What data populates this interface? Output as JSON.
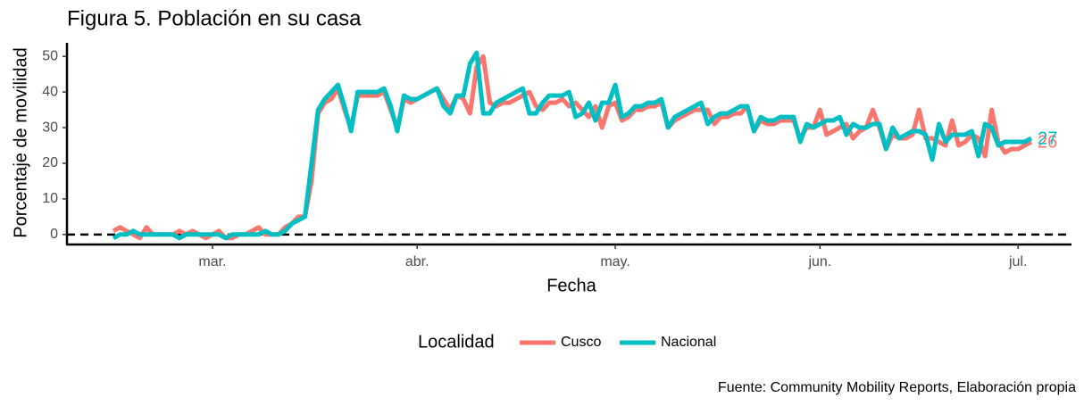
{
  "chart_data": {
    "type": "line",
    "title": "Figura 5. Población en su casa",
    "x_label": "Fecha",
    "y_label": "Porcentaje de movilidad",
    "legend_title": "Localidad",
    "caption": "Fuente: Community Mobility Reports, Elaboración propia",
    "categories": [
      null,
      null,
      null,
      null,
      null,
      null,
      null,
      null,
      null,
      null,
      null,
      null,
      null,
      null,
      null,
      "mar.",
      null,
      null,
      null,
      null,
      null,
      null,
      null,
      null,
      null,
      null,
      null,
      null,
      null,
      null,
      null,
      null,
      null,
      null,
      null,
      null,
      null,
      null,
      null,
      null,
      null,
      null,
      null,
      null,
      null,
      null,
      "abr.",
      null,
      null,
      null,
      null,
      null,
      null,
      null,
      null,
      null,
      null,
      null,
      null,
      null,
      null,
      null,
      null,
      null,
      null,
      null,
      null,
      null,
      null,
      null,
      null,
      null,
      null,
      null,
      null,
      null,
      "may.",
      null,
      null,
      null,
      null,
      null,
      null,
      null,
      null,
      null,
      null,
      null,
      null,
      null,
      null,
      null,
      null,
      null,
      null,
      null,
      null,
      null,
      null,
      null,
      null,
      null,
      null,
      null,
      null,
      null,
      null,
      "jun.",
      null,
      null,
      null,
      null,
      null,
      null,
      null,
      null,
      null,
      null,
      null,
      null,
      null,
      null,
      null,
      null,
      null,
      null,
      null,
      null,
      null,
      null,
      null,
      null,
      null,
      null,
      null,
      null,
      null,
      "jul.",
      null,
      null
    ],
    "series": [
      {
        "name": "Cusco",
        "color": "#F8766D",
        "values": [
          1,
          2,
          1,
          0,
          -1,
          2,
          0,
          0,
          0,
          0,
          1,
          0,
          1,
          0,
          -1,
          0,
          1,
          -1,
          -1,
          0,
          0,
          1,
          2,
          0,
          0,
          0,
          2,
          3,
          5,
          5,
          15,
          34,
          37,
          38,
          41,
          35,
          30,
          39,
          39,
          39,
          39,
          40,
          35,
          30,
          38,
          37,
          38,
          39,
          40,
          41,
          38,
          35,
          39,
          38,
          34,
          47,
          50,
          37,
          36,
          37,
          37,
          38,
          39,
          40,
          36,
          35,
          37,
          37,
          38,
          36,
          37,
          35,
          33,
          36,
          30,
          36,
          37,
          32,
          33,
          35,
          35,
          36,
          36,
          37,
          30,
          32,
          33,
          34,
          35,
          35,
          35,
          31,
          33,
          33,
          34,
          34,
          36,
          29,
          32,
          31,
          31,
          32,
          32,
          32,
          27,
          30,
          30,
          35,
          28,
          29,
          30,
          31,
          27,
          29,
          30,
          35,
          30,
          24,
          28,
          27,
          27,
          28,
          35,
          27,
          27,
          26,
          25,
          32,
          25,
          26,
          28,
          27,
          22,
          35,
          26,
          23,
          24,
          24,
          25,
          26
        ]
      },
      {
        "name": "Nacional",
        "color": "#00BFC4",
        "values": [
          -1,
          0,
          0,
          1,
          0,
          0,
          0,
          0,
          0,
          0,
          -1,
          0,
          0,
          0,
          0,
          0,
          0,
          -1,
          0,
          0,
          0,
          0,
          0,
          1,
          0,
          0,
          1,
          3,
          4,
          5,
          20,
          35,
          38,
          40,
          42,
          36,
          29,
          40,
          40,
          40,
          40,
          41,
          36,
          29,
          39,
          38,
          38,
          39,
          40,
          41,
          36,
          34,
          39,
          39,
          48,
          51,
          34,
          34,
          37,
          38,
          39,
          40,
          41,
          34,
          34,
          37,
          39,
          39,
          39,
          40,
          33,
          34,
          37,
          32,
          37,
          37,
          42,
          33,
          34,
          36,
          36,
          37,
          37,
          38,
          30,
          33,
          34,
          35,
          36,
          37,
          31,
          33,
          34,
          34,
          35,
          36,
          36,
          29,
          33,
          32,
          32,
          33,
          33,
          33,
          26,
          31,
          30,
          31,
          32,
          32,
          33,
          28,
          31,
          30,
          30,
          31,
          31,
          24,
          30,
          27,
          28,
          29,
          29,
          28,
          21,
          31,
          26,
          28,
          28,
          28,
          29,
          22,
          31,
          30,
          25,
          26,
          26,
          26,
          26,
          27
        ]
      }
    ],
    "ylim": [
      -2.8,
      53.8
    ],
    "yticks": [
      0,
      10,
      20,
      30,
      40,
      50
    ],
    "reference_line": 0,
    "legend": "bottom"
  }
}
